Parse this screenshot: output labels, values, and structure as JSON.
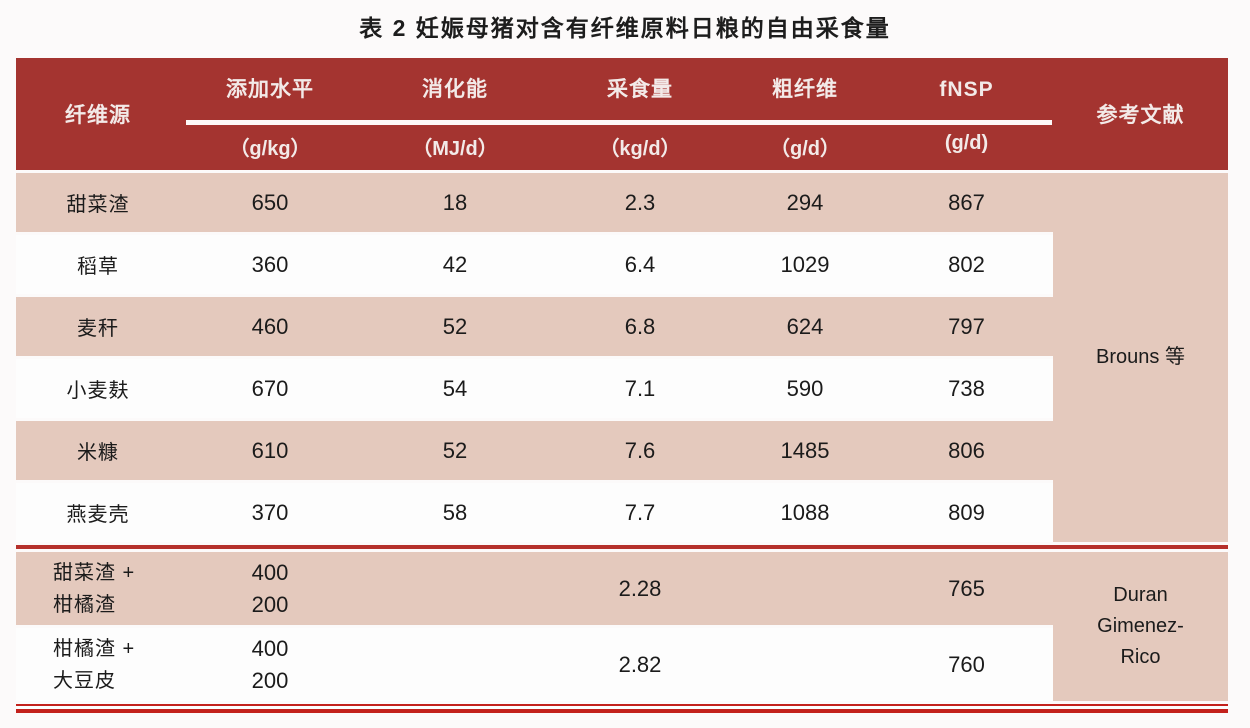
{
  "title": "表 2  妊娠母猪对含有纤维原料日粮的自由采食量",
  "colors": {
    "header_bg": "#a43430",
    "row_alt_bg": "#e4c9bd",
    "row_bg": "#fdfdfd",
    "section_divider_red": "#b5302b",
    "bottom_rule_red": "#c3211c",
    "header_text": "#f3eae8",
    "body_text": "#1b1b1b"
  },
  "chart_data": {
    "type": "table",
    "title": "表 2  妊娠母猪对含有纤维原料日粮的自由采食量",
    "columns": [
      {
        "key": "source",
        "label": "纤维源",
        "unit": null
      },
      {
        "key": "level",
        "label": "添加水平",
        "unit": "（g/kg）"
      },
      {
        "key": "de",
        "label": "消化能",
        "unit": "（MJ/d）"
      },
      {
        "key": "intake",
        "label": "采食量",
        "unit": "（kg/d）"
      },
      {
        "key": "cf",
        "label": "粗纤维",
        "unit": "（g/d）"
      },
      {
        "key": "fnsp",
        "label": "fNSP",
        "unit": "(g/d)"
      },
      {
        "key": "ref",
        "label": "参考文献",
        "unit": null
      }
    ],
    "sections": [
      {
        "reference": [
          "Brouns 等"
        ],
        "rows": [
          [
            "甜菜渣",
            "650",
            "18",
            "2.3",
            "294",
            "867"
          ],
          [
            "稻草",
            "360",
            "42",
            "6.4",
            "1029",
            "802"
          ],
          [
            "麦秆",
            "460",
            "52",
            "6.8",
            "624",
            "797"
          ],
          [
            "小麦麸",
            "670",
            "54",
            "7.1",
            "590",
            "738"
          ],
          [
            "米糠",
            "610",
            "52",
            "7.6",
            "1485",
            "806"
          ],
          [
            "燕麦壳",
            "370",
            "58",
            "7.7",
            "1088",
            "809"
          ]
        ]
      },
      {
        "reference": [
          "Duran",
          "Gimenez-",
          "Rico"
        ],
        "rows": [
          [
            [
              "甜菜渣 +",
              "柑橘渣"
            ],
            [
              "400",
              "200"
            ],
            "",
            "2.28",
            "",
            "765"
          ],
          [
            [
              "柑橘渣 +",
              "大豆皮"
            ],
            [
              "400",
              "200"
            ],
            "",
            "2.82",
            "",
            "760"
          ]
        ]
      }
    ]
  }
}
